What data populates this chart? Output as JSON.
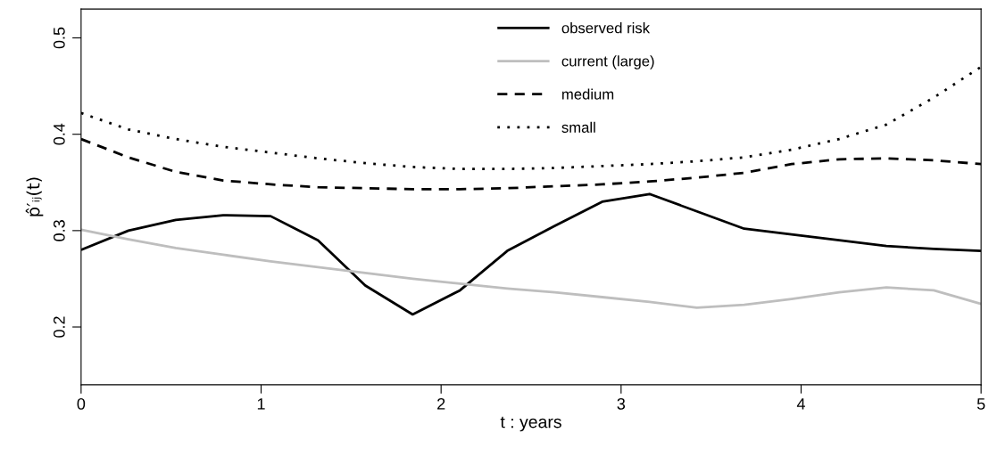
{
  "chart_data": {
    "type": "line",
    "xlabel": "t : years",
    "ylabel": "p̂′ᵢⱼ(t)",
    "x": [
      0,
      0.263,
      0.526,
      0.789,
      1.053,
      1.316,
      1.579,
      1.842,
      2.105,
      2.368,
      2.632,
      2.895,
      3.158,
      3.421,
      3.684,
      3.947,
      4.211,
      4.474,
      4.737,
      5
    ],
    "series": [
      {
        "name": "observed risk",
        "color": "#000000",
        "line_style": "solid",
        "values": [
          0.28,
          0.3,
          0.311,
          0.316,
          0.315,
          0.29,
          0.243,
          0.213,
          0.238,
          0.279,
          0.305,
          0.33,
          0.338,
          0.32,
          0.302,
          0.296,
          0.29,
          0.284,
          0.281,
          0.279
        ]
      },
      {
        "name": "current (large)",
        "color": "#bebebe",
        "line_style": "solid",
        "values": [
          0.301,
          0.291,
          0.282,
          0.275,
          0.268,
          0.262,
          0.256,
          0.25,
          0.245,
          0.24,
          0.236,
          0.231,
          0.226,
          0.22,
          0.223,
          0.229,
          0.236,
          0.241,
          0.238,
          0.224
        ]
      },
      {
        "name": "medium",
        "color": "#000000",
        "line_style": "dashed",
        "values": [
          0.395,
          0.376,
          0.361,
          0.352,
          0.348,
          0.345,
          0.344,
          0.343,
          0.343,
          0.344,
          0.346,
          0.348,
          0.351,
          0.355,
          0.36,
          0.369,
          0.374,
          0.375,
          0.373,
          0.369
        ]
      },
      {
        "name": "small",
        "color": "#000000",
        "line_style": "dotted",
        "values": [
          0.422,
          0.405,
          0.395,
          0.387,
          0.381,
          0.375,
          0.37,
          0.366,
          0.364,
          0.364,
          0.365,
          0.367,
          0.369,
          0.372,
          0.376,
          0.384,
          0.395,
          0.41,
          0.438,
          0.47
        ]
      }
    ],
    "xlim": [
      0,
      5
    ],
    "xticks": [
      0,
      1,
      2,
      3,
      4,
      5
    ],
    "ylim": [
      0.14,
      0.53
    ],
    "yticks": [
      0.2,
      0.3,
      0.4,
      0.5
    ],
    "grid": false,
    "legend": "top",
    "marker": "none"
  }
}
